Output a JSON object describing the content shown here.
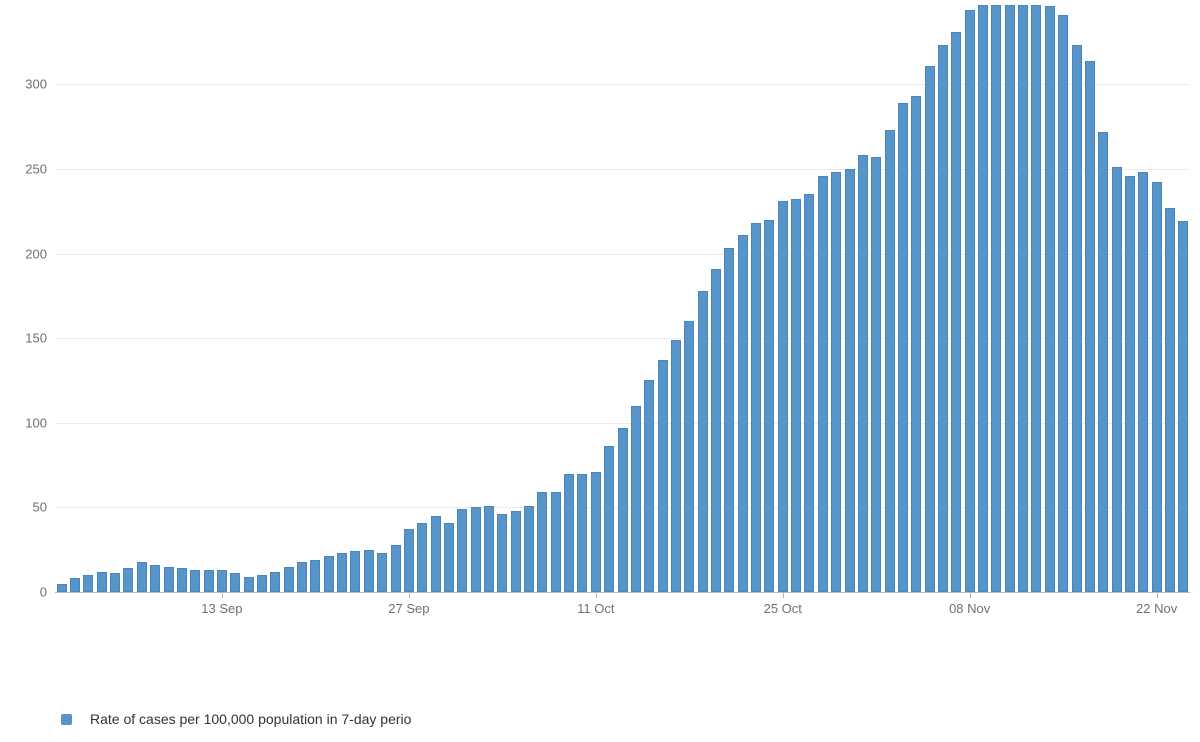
{
  "chart_data": {
    "type": "bar",
    "title": "",
    "xlabel": "",
    "ylabel": "",
    "series_name": "Rate of cases per 100,000 population in 7-day perio",
    "categories": [
      "01 Sep",
      "02 Sep",
      "03 Sep",
      "04 Sep",
      "05 Sep",
      "06 Sep",
      "07 Sep",
      "08 Sep",
      "09 Sep",
      "10 Sep",
      "11 Sep",
      "12 Sep",
      "13 Sep",
      "14 Sep",
      "15 Sep",
      "16 Sep",
      "17 Sep",
      "18 Sep",
      "19 Sep",
      "20 Sep",
      "21 Sep",
      "22 Sep",
      "23 Sep",
      "24 Sep",
      "25 Sep",
      "26 Sep",
      "27 Sep",
      "28 Sep",
      "29 Sep",
      "30 Sep",
      "01 Oct",
      "02 Oct",
      "03 Oct",
      "04 Oct",
      "05 Oct",
      "06 Oct",
      "07 Oct",
      "08 Oct",
      "09 Oct",
      "10 Oct",
      "11 Oct",
      "12 Oct",
      "13 Oct",
      "14 Oct",
      "15 Oct",
      "16 Oct",
      "17 Oct",
      "18 Oct",
      "19 Oct",
      "20 Oct",
      "21 Oct",
      "22 Oct",
      "23 Oct",
      "24 Oct",
      "25 Oct",
      "26 Oct",
      "27 Oct",
      "28 Oct",
      "29 Oct",
      "30 Oct",
      "31 Oct",
      "01 Nov",
      "02 Nov",
      "03 Nov",
      "04 Nov",
      "05 Nov",
      "06 Nov",
      "07 Nov",
      "08 Nov",
      "09 Nov",
      "10 Nov",
      "11 Nov",
      "12 Nov",
      "13 Nov",
      "14 Nov",
      "15 Nov",
      "16 Nov",
      "17 Nov",
      "18 Nov",
      "19 Nov",
      "20 Nov",
      "21 Nov",
      "22 Nov",
      "23 Nov",
      "24 Nov"
    ],
    "values": [
      5,
      8,
      10,
      12,
      11,
      14,
      18,
      16,
      15,
      14,
      13,
      13,
      13,
      11,
      9,
      10,
      12,
      15,
      18,
      19,
      21,
      23,
      24,
      25,
      23,
      28,
      37,
      41,
      45,
      41,
      49,
      50,
      51,
      46,
      48,
      51,
      59,
      59,
      70,
      70,
      71,
      86,
      97,
      110,
      125,
      137,
      149,
      160,
      178,
      191,
      203,
      211,
      218,
      220,
      231,
      232,
      235,
      246,
      248,
      250,
      258,
      257,
      273,
      289,
      293,
      311,
      323,
      331,
      344,
      347,
      347,
      347,
      347,
      347,
      346,
      341,
      323,
      314,
      272,
      251,
      246,
      248,
      242,
      227,
      219
    ],
    "ylim": [
      0,
      350
    ],
    "yticks": [
      0,
      50,
      100,
      150,
      200,
      250,
      300
    ],
    "xticks": [
      {
        "index": 12,
        "label": "13 Sep"
      },
      {
        "index": 26,
        "label": "27 Sep"
      },
      {
        "index": 40,
        "label": "11 Oct"
      },
      {
        "index": 54,
        "label": "25 Oct"
      },
      {
        "index": 68,
        "label": "08 Nov"
      },
      {
        "index": 82,
        "label": "22 Nov"
      }
    ],
    "grid": "horizontal",
    "legend_position": "bottom-left",
    "colors": {
      "bar_fill": "#5694ca",
      "bar_border": "#4886bb",
      "grid_line": "#ebebeb",
      "axis_line": "#b6babe",
      "tick_label": "#707070",
      "legend_text": "#333333"
    }
  },
  "legend": {
    "label": "Rate of cases per 100,000 population in 7-day perio"
  }
}
